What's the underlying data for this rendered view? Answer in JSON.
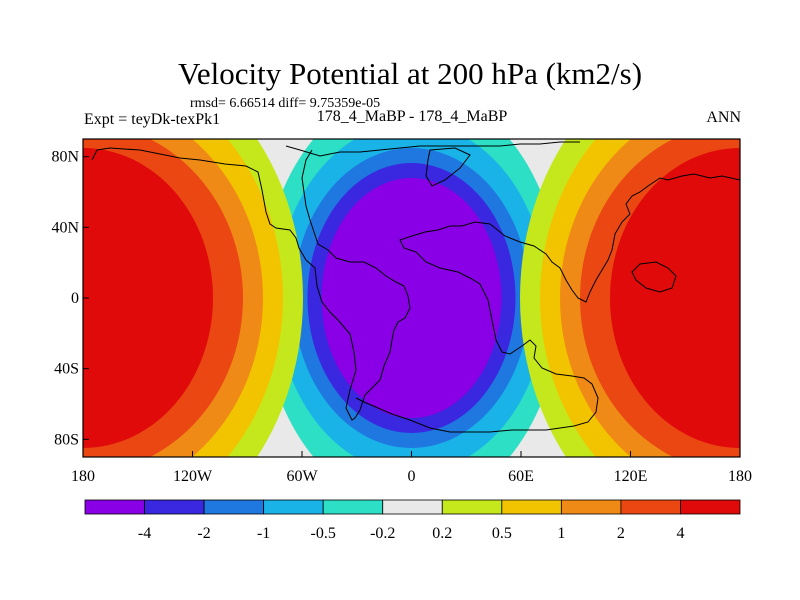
{
  "chart_data": {
    "type": "heatmap",
    "title": "Velocity Potential at 200 hPa (km2/s)",
    "stats_text": "rmsd= 6.66514 diff= 9.75359e-05",
    "left_label": "Expt = teyDk-texPk1",
    "center_label": "178_4_MaBP - 178_4_MaBP",
    "right_label": "ANN",
    "x_ticks": [
      "180",
      "120W",
      "60W",
      "0",
      "60E",
      "120E",
      "180"
    ],
    "x_tick_values": [
      -180,
      -120,
      -60,
      0,
      60,
      120,
      180
    ],
    "y_ticks": [
      "80N",
      "40N",
      "0",
      "40S",
      "80S"
    ],
    "y_tick_values": [
      80,
      40,
      0,
      -40,
      -80
    ],
    "xlim": [
      -180,
      180
    ],
    "ylim": [
      -90,
      90
    ],
    "contour_levels": [
      "-4",
      "-2",
      "-1",
      "-0.5",
      "-0.2",
      "0.2",
      "0.5",
      "1",
      "2",
      "4"
    ],
    "colorbar_colors": [
      "#8a00e6",
      "#3a27e0",
      "#1f78e0",
      "#19b3e8",
      "#2ddfc4",
      "#e9e9e9",
      "#c4e81c",
      "#f2c400",
      "#f08a16",
      "#ea4713",
      "#e00a0a"
    ],
    "field_min_center": [
      0,
      0
    ],
    "field_max_center": [
      180,
      0
    ],
    "colors": {
      "tick": "#000000",
      "coast": "#000000"
    }
  }
}
